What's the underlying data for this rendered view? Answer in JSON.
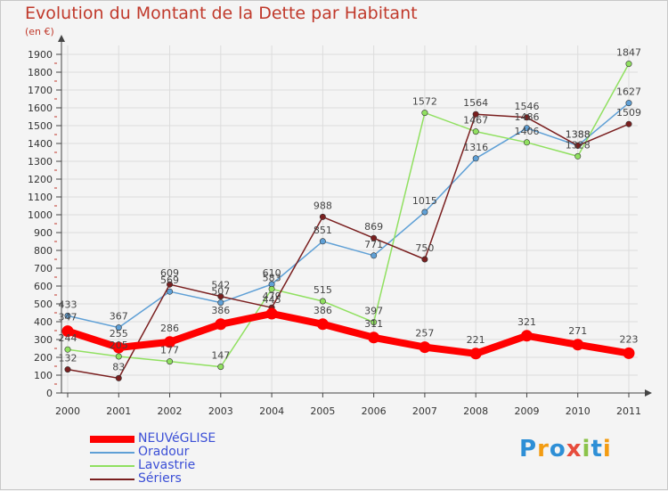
{
  "title": "Evolution du Montant de la Dette par Habitant",
  "unit_note": "(en €)",
  "logo": {
    "text": "Proxiti",
    "letters": [
      {
        "ch": "P",
        "color": "#2e8fd6"
      },
      {
        "ch": "r",
        "color": "#f39c12"
      },
      {
        "ch": "o",
        "color": "#2e8fd6"
      },
      {
        "ch": "x",
        "color": "#e74c3c"
      },
      {
        "ch": "i",
        "color": "#8bc34a"
      },
      {
        "ch": "t",
        "color": "#2e8fd6"
      },
      {
        "ch": "i",
        "color": "#f39c12"
      }
    ]
  },
  "chart_data": {
    "type": "line",
    "title": "Evolution du Montant de la Dette par Habitant",
    "ylabel": "(en €)",
    "xlabel": "",
    "x": [
      "2000",
      "2001",
      "2002",
      "2003",
      "2004",
      "2005",
      "2006",
      "2007",
      "2008",
      "2009",
      "2010",
      "2011"
    ],
    "ylim": [
      0,
      1900
    ],
    "yticks": [
      0,
      100,
      200,
      300,
      400,
      500,
      600,
      700,
      800,
      900,
      1000,
      1100,
      1200,
      1300,
      1400,
      1500,
      1600,
      1700,
      1800,
      1900
    ],
    "grid": true,
    "legend_position": "bottom-left",
    "series": [
      {
        "name": "NEUVéGLISE",
        "color": "#ff0000",
        "width": 8,
        "values": [
          347,
          255,
          286,
          386,
          445,
          386,
          311,
          257,
          221,
          321,
          271,
          223
        ]
      },
      {
        "name": "Oradour",
        "color": "#5fa0d6",
        "width": 1.5,
        "values": [
          433,
          367,
          569,
          507,
          610,
          851,
          771,
          1015,
          1316,
          1486,
          1388,
          1627
        ]
      },
      {
        "name": "Lavastrie",
        "color": "#90e060",
        "width": 1.5,
        "values": [
          244,
          205,
          177,
          147,
          583,
          515,
          397,
          1572,
          1467,
          1406,
          1328,
          1847
        ]
      },
      {
        "name": "Sériers",
        "color": "#7a1f1f",
        "width": 1.5,
        "values": [
          132,
          83,
          609,
          542,
          479,
          988,
          869,
          750,
          1564,
          1546,
          1388,
          1509
        ]
      }
    ]
  }
}
